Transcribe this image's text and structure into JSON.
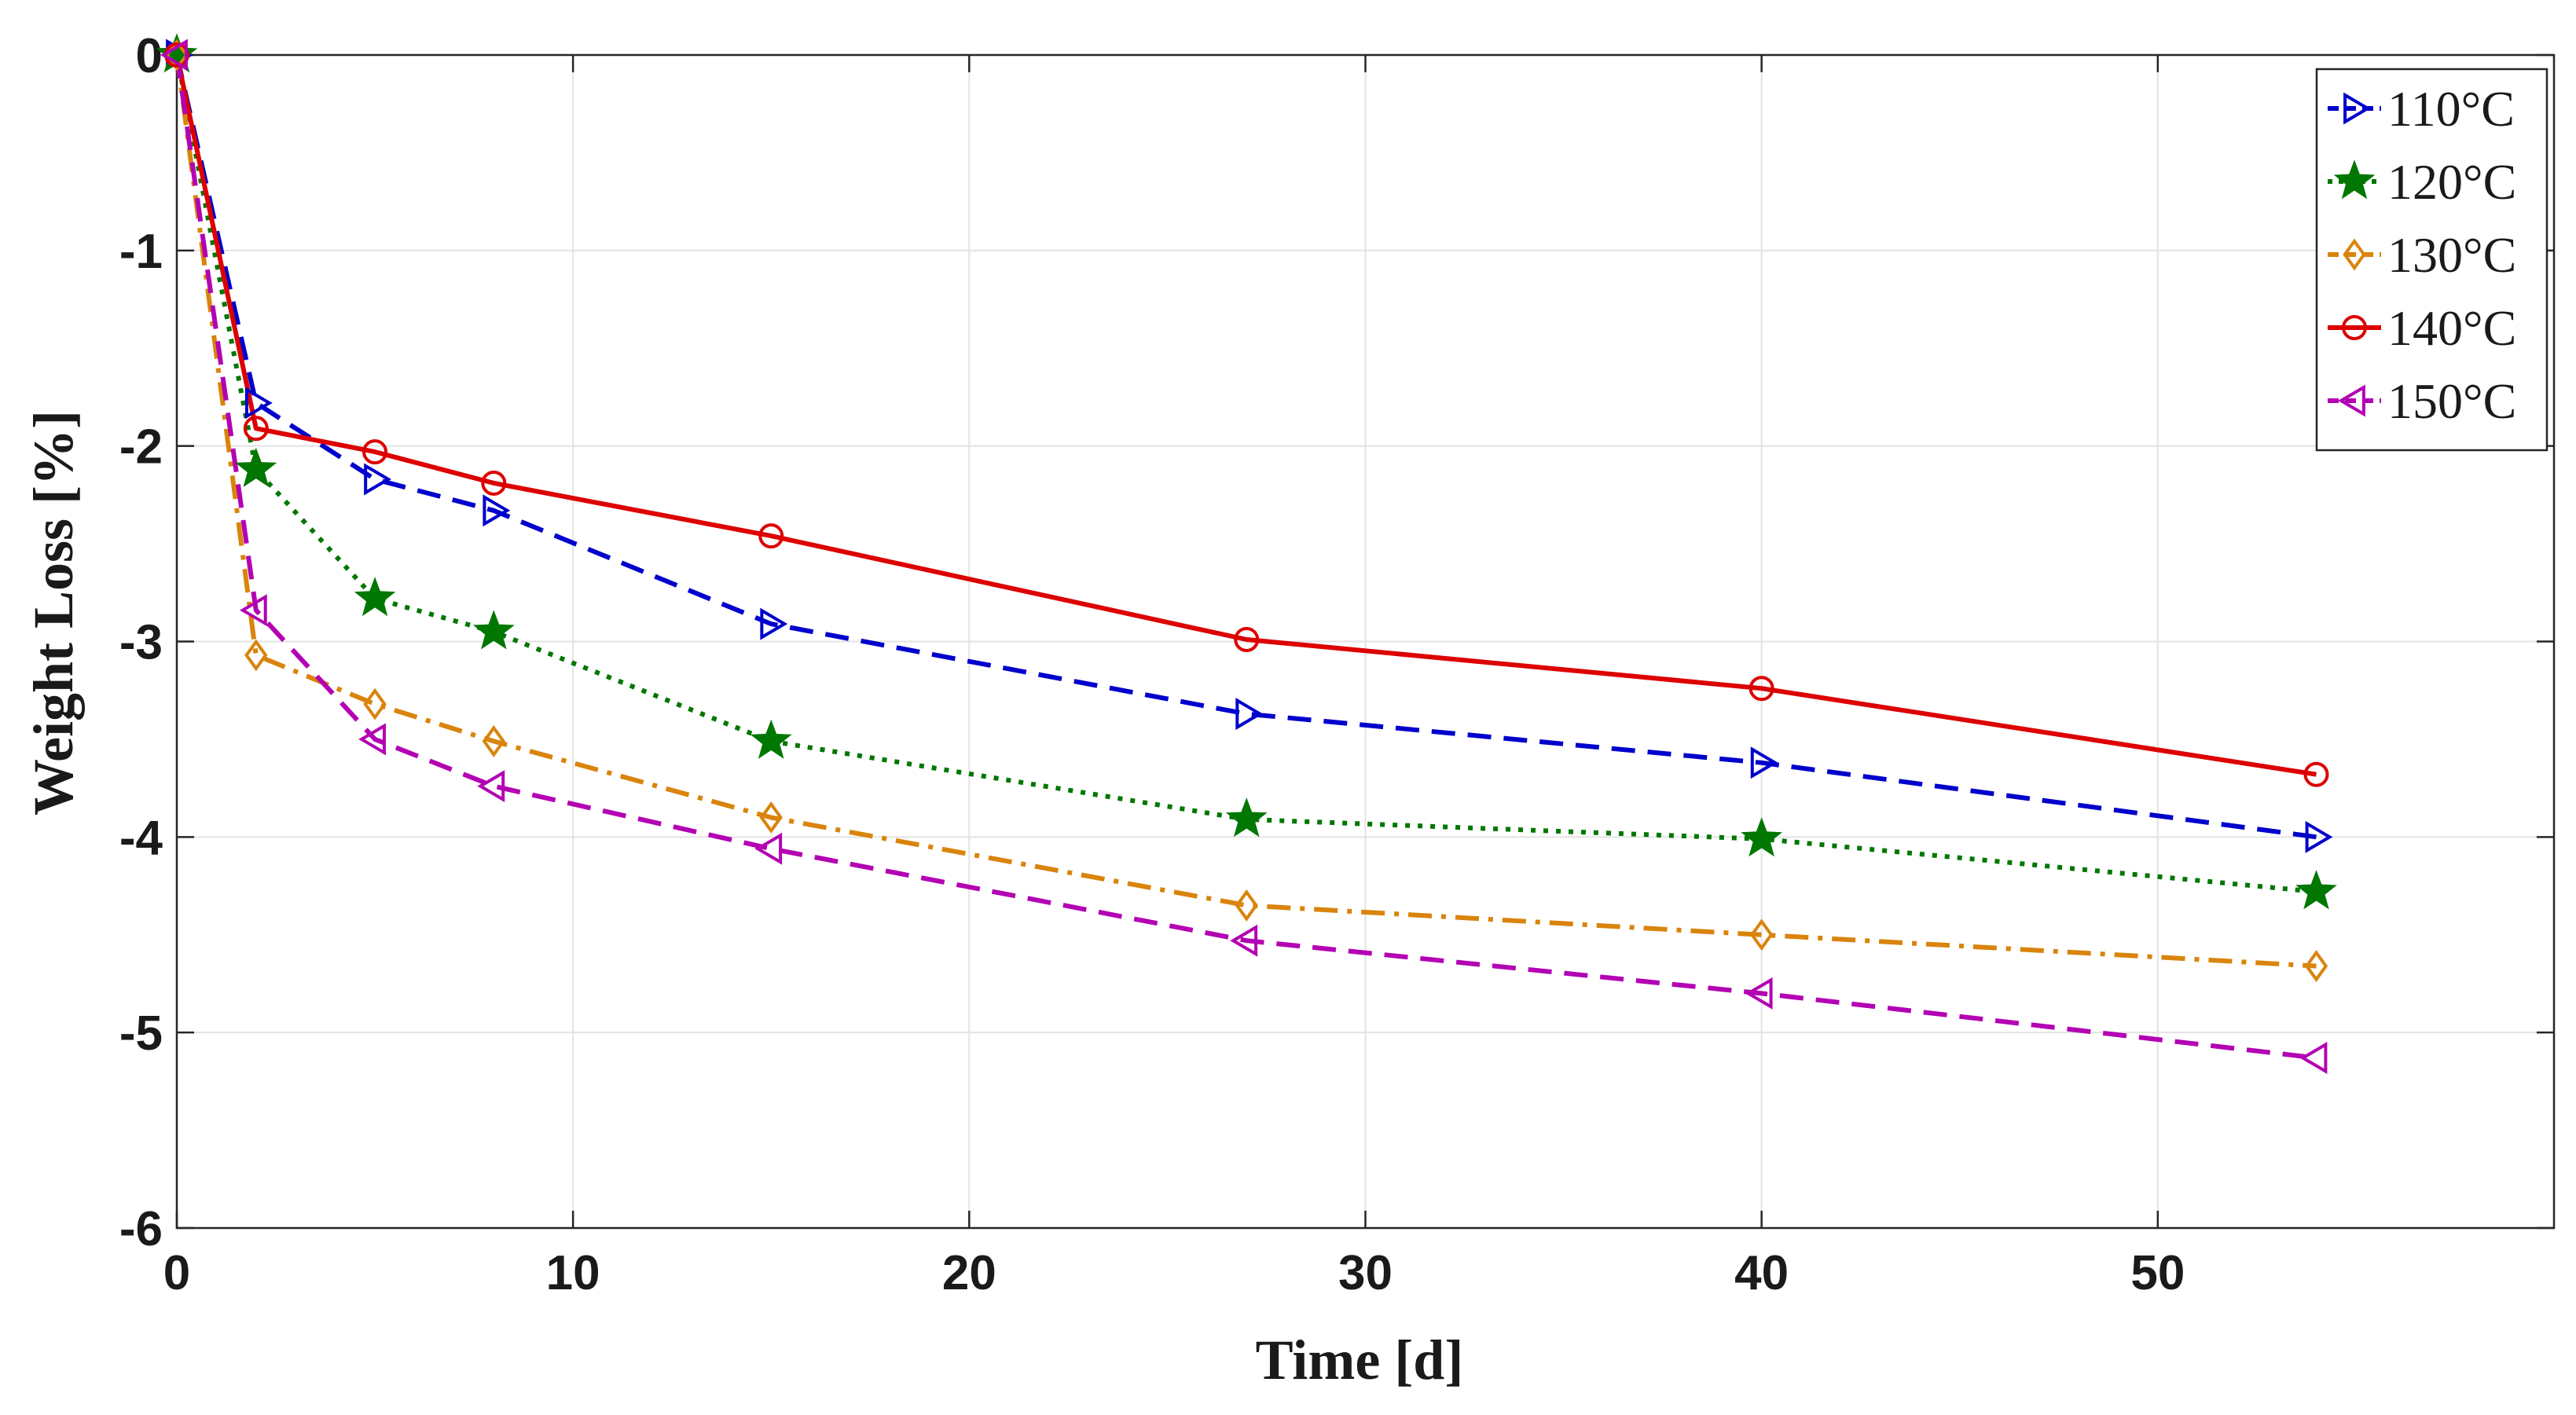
{
  "chart_data": {
    "type": "line",
    "title": "",
    "xlabel": "Time [d]",
    "ylabel": "Weight  Loss [%]",
    "xlim": [
      0,
      60
    ],
    "ylim": [
      -6,
      0
    ],
    "xticks": [
      0,
      10,
      20,
      30,
      40,
      50
    ],
    "yticks": [
      0,
      -1,
      -2,
      -3,
      -4,
      -5,
      -6
    ],
    "grid": true,
    "legend_position": "top-right",
    "x": [
      0,
      2,
      5,
      8,
      15,
      27,
      40,
      54
    ],
    "series": [
      {
        "name": "110°C",
        "color": "#0000cc",
        "marker": "triangle-right",
        "linestyle": "dashed",
        "values": [
          0,
          -1.78,
          -2.17,
          -2.33,
          -2.91,
          -3.37,
          -3.62,
          -4.0
        ]
      },
      {
        "name": "120°C",
        "color": "#007700",
        "marker": "star",
        "linestyle": "dotted",
        "values": [
          0,
          -2.12,
          -2.78,
          -2.95,
          -3.51,
          -3.91,
          -4.01,
          -4.28
        ]
      },
      {
        "name": "130°C",
        "color": "#d9840c",
        "marker": "diamond",
        "linestyle": "dashdot",
        "values": [
          0,
          -3.07,
          -3.32,
          -3.51,
          -3.9,
          -4.35,
          -4.5,
          -4.66
        ]
      },
      {
        "name": "140°C",
        "color": "#dd0000",
        "marker": "circle",
        "linestyle": "solid",
        "values": [
          0,
          -1.91,
          -2.03,
          -2.19,
          -2.46,
          -2.99,
          -3.24,
          -3.68
        ]
      },
      {
        "name": "150°C",
        "color": "#b300b3",
        "marker": "triangle-left",
        "linestyle": "dashed",
        "values": [
          0,
          -2.84,
          -3.5,
          -3.74,
          -4.06,
          -4.53,
          -4.8,
          -5.13
        ]
      }
    ]
  }
}
